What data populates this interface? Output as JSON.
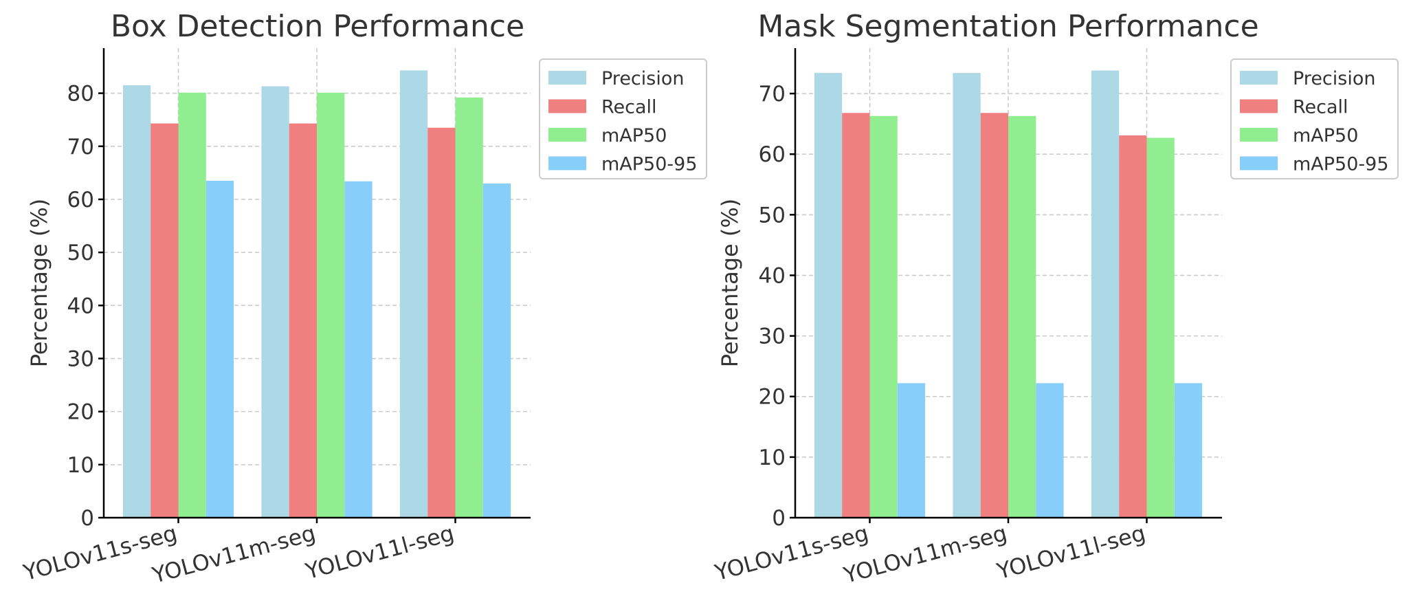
{
  "chart_data": [
    {
      "type": "bar",
      "title": "Box Detection Performance",
      "xlabel": "",
      "ylabel": "Percentage (%)",
      "ylim": [
        0,
        88.5
      ],
      "yticks": [
        0,
        10,
        20,
        30,
        40,
        50,
        60,
        70,
        80
      ],
      "grid": true,
      "legend_placement": "outside top-right",
      "categories": [
        "YOLOv11s-seg",
        "YOLOv11m-seg",
        "YOLOv11l-seg"
      ],
      "series": [
        {
          "name": "Precision",
          "color": "#add8e6",
          "values": [
            81.5,
            81.3,
            84.3
          ]
        },
        {
          "name": "Recall",
          "color": "#f08080",
          "values": [
            74.3,
            74.3,
            73.5
          ]
        },
        {
          "name": "mAP50",
          "color": "#90ee90",
          "values": [
            80.1,
            80.1,
            79.2
          ]
        },
        {
          "name": "mAP50-95",
          "color": "#87cefa",
          "values": [
            63.5,
            63.4,
            63.0
          ]
        }
      ]
    },
    {
      "type": "bar",
      "title": "Mask Segmentation Performance",
      "xlabel": "",
      "ylabel": "Percentage (%)",
      "ylim": [
        0,
        77.5
      ],
      "yticks": [
        0,
        10,
        20,
        30,
        40,
        50,
        60,
        70
      ],
      "grid": true,
      "legend_placement": "outside top-right",
      "categories": [
        "YOLOv11s-seg",
        "YOLOv11m-seg",
        "YOLOv11l-seg"
      ],
      "series": [
        {
          "name": "Precision",
          "color": "#add8e6",
          "values": [
            73.4,
            73.4,
            73.8
          ]
        },
        {
          "name": "Recall",
          "color": "#f08080",
          "values": [
            66.8,
            66.8,
            63.1
          ]
        },
        {
          "name": "mAP50",
          "color": "#90ee90",
          "values": [
            66.3,
            66.3,
            62.7
          ]
        },
        {
          "name": "mAP50-95",
          "color": "#87cefa",
          "values": [
            22.2,
            22.2,
            22.2
          ]
        }
      ]
    }
  ]
}
